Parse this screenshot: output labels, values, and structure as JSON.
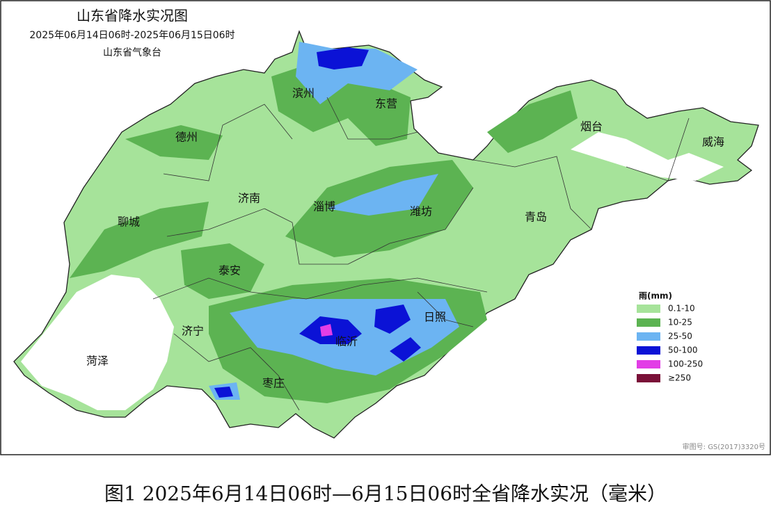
{
  "map": {
    "title": "山东省降水实况图",
    "period": "2025年06月14日06时-2025年06月15日06时",
    "issuer": "山东省气象台",
    "cities": [
      "滨州",
      "东营",
      "德州",
      "烟台",
      "威海",
      "济南",
      "淄博",
      "潍坊",
      "聊城",
      "青岛",
      "泰安",
      "日照",
      "济宁",
      "临沂",
      "菏泽",
      "枣庄"
    ],
    "legend": {
      "title": "雨(mm)",
      "items": [
        {
          "label": "0.1-10",
          "color": "#a6e39a"
        },
        {
          "label": "10-25",
          "color": "#5cb352"
        },
        {
          "label": "25-50",
          "color": "#6cb4f2"
        },
        {
          "label": "50-100",
          "color": "#0b12d6"
        },
        {
          "label": "100-250",
          "color": "#e23ee6"
        },
        {
          "label": "≥250",
          "color": "#7a1038"
        }
      ]
    },
    "approval": "审图号: GS(2017)3320号"
  },
  "caption": "图1 2025年6月14日06时—6月15日06时全省降水实况（毫米）"
}
